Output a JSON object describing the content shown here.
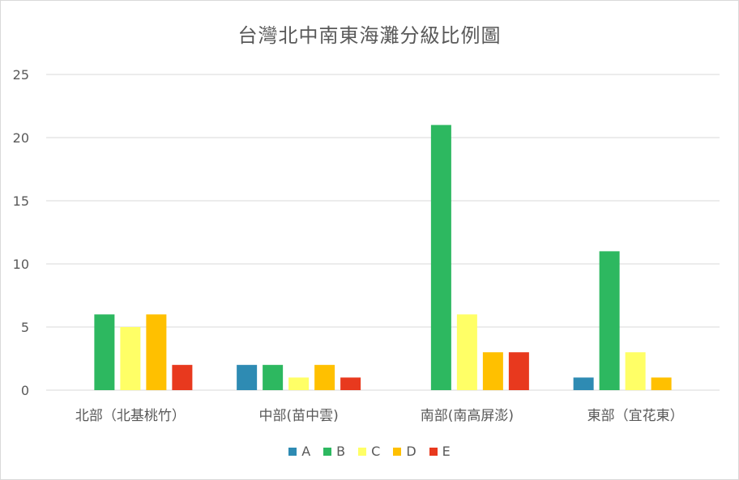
{
  "chart_data": {
    "type": "bar",
    "title": "台灣北中南東海灘分級比例圖",
    "categories": [
      "北部（北基桃竹）",
      "中部(苗中雲)",
      "南部(南高屏澎)",
      "東部（宜花東）"
    ],
    "series": [
      {
        "name": "A",
        "values": [
          0,
          2,
          0,
          1
        ],
        "color": "#2e8bb3"
      },
      {
        "name": "B",
        "values": [
          6,
          2,
          21,
          11
        ],
        "color": "#2db860"
      },
      {
        "name": "C",
        "values": [
          5,
          1,
          6,
          3
        ],
        "color": "#ffff66"
      },
      {
        "name": "D",
        "values": [
          6,
          2,
          3,
          1
        ],
        "color": "#ffc000"
      },
      {
        "name": "E",
        "values": [
          2,
          1,
          3,
          0
        ],
        "color": "#e8391e"
      }
    ],
    "ylim": [
      0,
      25
    ],
    "yticks": [
      0,
      5,
      10,
      15,
      20,
      25
    ],
    "xlabel": "",
    "ylabel": "",
    "grid": true,
    "legend": "bottom"
  }
}
